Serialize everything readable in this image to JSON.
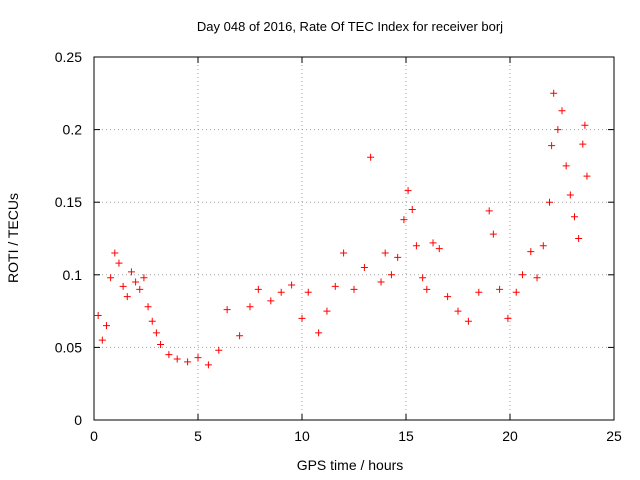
{
  "chart_data": {
    "type": "scatter",
    "title": "Day 048 of 2016, Rate Of TEC Index for receiver borj",
    "xlabel": "GPS time / hours",
    "ylabel": "ROTI / TECUs",
    "xlim": [
      0,
      25
    ],
    "ylim": [
      0,
      0.25
    ],
    "xticks": [
      0,
      5,
      10,
      15,
      20,
      25
    ],
    "yticks": [
      0,
      0.05,
      0.1,
      0.15,
      0.2,
      0.25
    ],
    "xtick_labels": [
      "0",
      "5",
      "10",
      "15",
      "20",
      "25"
    ],
    "ytick_labels": [
      "0",
      "0.05",
      "0.1",
      "0.15",
      "0.2",
      "0.25"
    ],
    "grid": true,
    "marker": "+",
    "color": "#ff0000",
    "series": [
      {
        "name": "ROTI",
        "points": [
          [
            0.2,
            0.072
          ],
          [
            0.4,
            0.055
          ],
          [
            0.6,
            0.065
          ],
          [
            0.8,
            0.098
          ],
          [
            1.0,
            0.115
          ],
          [
            1.2,
            0.108
          ],
          [
            1.4,
            0.092
          ],
          [
            1.6,
            0.085
          ],
          [
            1.8,
            0.102
          ],
          [
            2.0,
            0.095
          ],
          [
            2.2,
            0.09
          ],
          [
            2.4,
            0.098
          ],
          [
            2.6,
            0.078
          ],
          [
            2.8,
            0.068
          ],
          [
            3.0,
            0.06
          ],
          [
            3.2,
            0.052
          ],
          [
            3.6,
            0.045
          ],
          [
            4.0,
            0.042
          ],
          [
            4.5,
            0.04
          ],
          [
            5.0,
            0.043
          ],
          [
            5.5,
            0.038
          ],
          [
            6.0,
            0.048
          ],
          [
            6.4,
            0.076
          ],
          [
            7.0,
            0.058
          ],
          [
            7.5,
            0.078
          ],
          [
            7.9,
            0.09
          ],
          [
            8.5,
            0.082
          ],
          [
            9.0,
            0.088
          ],
          [
            9.5,
            0.093
          ],
          [
            10.0,
            0.07
          ],
          [
            10.3,
            0.088
          ],
          [
            10.8,
            0.06
          ],
          [
            11.2,
            0.075
          ],
          [
            11.6,
            0.092
          ],
          [
            12.0,
            0.115
          ],
          [
            12.5,
            0.09
          ],
          [
            13.0,
            0.105
          ],
          [
            13.3,
            0.181
          ],
          [
            13.8,
            0.095
          ],
          [
            14.0,
            0.115
          ],
          [
            14.3,
            0.1
          ],
          [
            14.6,
            0.112
          ],
          [
            14.9,
            0.138
          ],
          [
            15.1,
            0.158
          ],
          [
            15.3,
            0.145
          ],
          [
            15.5,
            0.12
          ],
          [
            15.8,
            0.098
          ],
          [
            16.0,
            0.09
          ],
          [
            16.3,
            0.122
          ],
          [
            16.6,
            0.118
          ],
          [
            17.0,
            0.085
          ],
          [
            17.5,
            0.075
          ],
          [
            18.0,
            0.068
          ],
          [
            18.5,
            0.088
          ],
          [
            19.0,
            0.144
          ],
          [
            19.2,
            0.128
          ],
          [
            19.5,
            0.09
          ],
          [
            19.9,
            0.07
          ],
          [
            20.3,
            0.088
          ],
          [
            20.6,
            0.1
          ],
          [
            21.0,
            0.116
          ],
          [
            21.3,
            0.098
          ],
          [
            21.6,
            0.12
          ],
          [
            21.9,
            0.15
          ],
          [
            22.0,
            0.189
          ],
          [
            22.1,
            0.225
          ],
          [
            22.3,
            0.2
          ],
          [
            22.5,
            0.213
          ],
          [
            22.7,
            0.175
          ],
          [
            22.9,
            0.155
          ],
          [
            23.1,
            0.14
          ],
          [
            23.3,
            0.125
          ],
          [
            23.5,
            0.19
          ],
          [
            23.6,
            0.203
          ],
          [
            23.7,
            0.168
          ]
        ]
      }
    ]
  }
}
